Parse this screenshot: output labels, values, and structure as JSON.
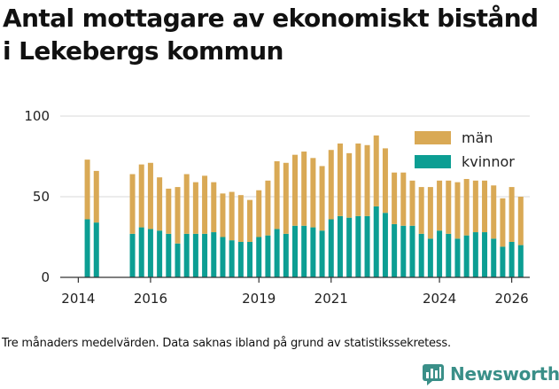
{
  "title_line1": "Antal mottagare av ekonomiskt bistånd",
  "title_line2": "i Lekebergs kommun",
  "footnote": "Tre månaders medelvärden. Data saknas ibland på grund av statistikssekretess.",
  "brand": {
    "name": "Newsworthy",
    "icon": "newsworthy-logo-icon"
  },
  "colors": {
    "man": "#D9A955",
    "kvinnor": "#0C9E93",
    "axis": "#333333",
    "grid": "#d9d9d9"
  },
  "chart_data": {
    "type": "bar",
    "stacked": true,
    "title": "Antal mottagare av ekonomiskt bistånd i Lekebergs kommun",
    "xlabel": "",
    "ylabel": "",
    "ylim": [
      0,
      100
    ],
    "yticks": [
      0,
      50,
      100
    ],
    "xlim": [
      2013.5,
      2026.5
    ],
    "xticks": [
      2014,
      2016,
      2019,
      2021,
      2024,
      2026
    ],
    "legend": {
      "position": "top-right",
      "entries": [
        "män",
        "kvinnor"
      ]
    },
    "x": [
      2014.25,
      2014.5,
      2015.5,
      2015.75,
      2016.0,
      2016.25,
      2016.5,
      2016.75,
      2017.0,
      2017.25,
      2017.5,
      2017.75,
      2018.0,
      2018.25,
      2018.5,
      2018.75,
      2019.0,
      2019.25,
      2019.5,
      2019.75,
      2020.0,
      2020.25,
      2020.5,
      2020.75,
      2021.0,
      2021.25,
      2021.5,
      2021.75,
      2022.0,
      2022.25,
      2022.5,
      2022.75,
      2023.0,
      2023.25,
      2023.5,
      2023.75,
      2024.0,
      2024.25,
      2024.5,
      2024.75,
      2025.0,
      2025.25,
      2025.5,
      2025.75,
      2026.0,
      2026.25
    ],
    "series": [
      {
        "name": "kvinnor",
        "values": [
          36,
          34,
          27,
          31,
          30,
          29,
          27,
          21,
          27,
          27,
          27,
          28,
          25,
          23,
          22,
          22,
          25,
          26,
          30,
          27,
          32,
          32,
          31,
          29,
          36,
          38,
          37,
          38,
          38,
          44,
          40,
          33,
          32,
          32,
          27,
          24,
          29,
          27,
          24,
          26,
          28,
          28,
          24,
          19,
          22,
          20
        ]
      },
      {
        "name": "män",
        "values": [
          37,
          32,
          37,
          39,
          41,
          33,
          28,
          35,
          37,
          32,
          36,
          31,
          27,
          30,
          29,
          26,
          29,
          34,
          42,
          44,
          44,
          46,
          43,
          40,
          43,
          45,
          40,
          45,
          44,
          44,
          40,
          32,
          33,
          28,
          29,
          32,
          31,
          33,
          35,
          35,
          32,
          32,
          33,
          30,
          34,
          30
        ]
      }
    ]
  }
}
